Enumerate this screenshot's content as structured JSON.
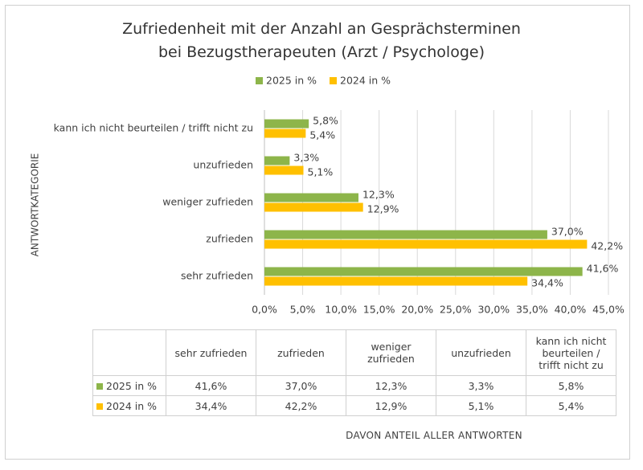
{
  "chart_data": {
    "type": "bar",
    "orientation": "horizontal",
    "title": "Zufriedenheit mit der Anzahl an Gesprächsterminen bei Bezugstherapeuten (Arzt / Psychologe)",
    "y_label": "ANTWORTKATEGORIE",
    "x_label": "DAVON ANTEIL ALLER ANTWORTEN",
    "categories": [
      "sehr zufrieden",
      "zufrieden",
      "weniger zufrieden",
      "unzufrieden",
      "kann ich nicht beurteilen / trifft nicht zu"
    ],
    "series": [
      {
        "name": "2025 in %",
        "color": "#8db54a",
        "values": [
          41.6,
          37.0,
          12.3,
          3.3,
          5.8
        ],
        "value_labels": [
          "41,6%",
          "37,0%",
          "12,3%",
          "3,3%",
          "5,8%"
        ]
      },
      {
        "name": "2024 in %",
        "color": "#ffc000",
        "values": [
          34.4,
          42.2,
          12.9,
          5.1,
          5.4
        ],
        "value_labels": [
          "34,4%",
          "42,2%",
          "12,9%",
          "5,1%",
          "5,4%"
        ]
      }
    ],
    "xlim": [
      0,
      45
    ],
    "xticks": [
      {
        "value": 0,
        "label": "0,0%"
      },
      {
        "value": 5,
        "label": "5,0%"
      },
      {
        "value": 10,
        "label": "10,0%"
      },
      {
        "value": 15,
        "label": "15,0%"
      },
      {
        "value": 20,
        "label": "20,0%"
      },
      {
        "value": 25,
        "label": "25,0%"
      },
      {
        "value": 30,
        "label": "30,0%"
      },
      {
        "value": 35,
        "label": "35,0%"
      },
      {
        "value": 40,
        "label": "40,0%"
      },
      {
        "value": 45,
        "label": "45,0%"
      }
    ],
    "grid": true,
    "legend": "top",
    "data_table": true
  }
}
